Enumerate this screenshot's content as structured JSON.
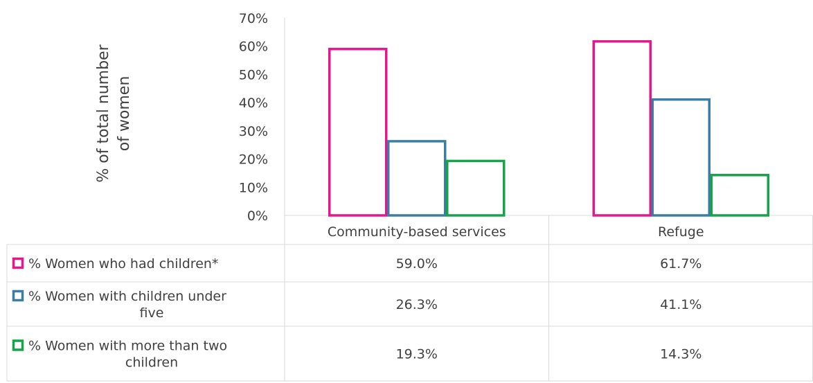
{
  "chart_data": {
    "type": "bar",
    "categories": [
      "Community-based services",
      "Refuge"
    ],
    "ylabel_lines": [
      "% of total number",
      "of women"
    ],
    "ylim": [
      0,
      70
    ],
    "yticks": [
      "0%",
      "10%",
      "20%",
      "30%",
      "40%",
      "50%",
      "60%",
      "70%"
    ],
    "grid": false,
    "legend": "data-table",
    "series": [
      {
        "name_lines": [
          "% Women who had children*"
        ],
        "values": [
          59.0,
          61.7
        ],
        "labels": [
          "59.0%",
          "61.7%"
        ],
        "color": "#e6178b"
      },
      {
        "name_lines": [
          "% Women with children under",
          "five"
        ],
        "values": [
          26.3,
          41.1
        ],
        "labels": [
          "26.3%",
          "41.1%"
        ],
        "color": "#3a7ea1"
      },
      {
        "name_lines": [
          "% Women with more than two",
          "children"
        ],
        "values": [
          19.3,
          14.3
        ],
        "labels": [
          "19.3%",
          "14.3%"
        ],
        "color": "#16a34a"
      }
    ]
  }
}
